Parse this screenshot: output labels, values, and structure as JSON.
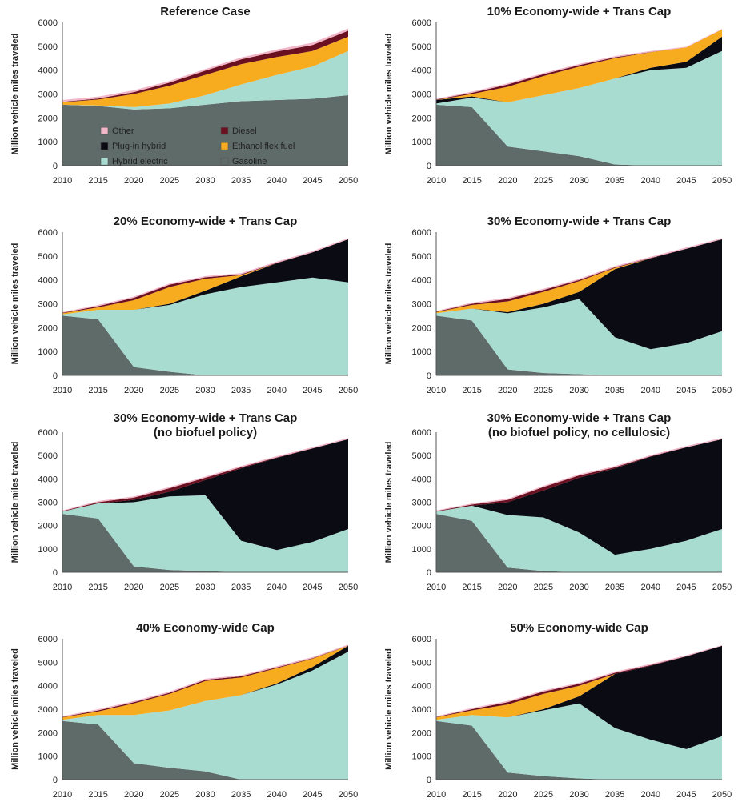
{
  "colors": {
    "Gasoline": "#5f6b69",
    "Hybrid electric": "#a8dcd1",
    "Plug-in hybrid": "#0b0b14",
    "Ethanol flex fuel": "#f7ab1e",
    "Diesel": "#6b1020",
    "Other": "#f2b6c9"
  },
  "chart_data": [
    {
      "type": "area",
      "title": "Reference Case",
      "title2": "",
      "ylabel": "Million vehicle miles traveled",
      "xlabel": "",
      "ylim": [
        0,
        6000
      ],
      "yticks": [
        "0",
        "1000",
        "2000",
        "3000",
        "4000",
        "5000",
        "6000"
      ],
      "x": [
        "2010",
        "2015",
        "2020",
        "2025",
        "2030",
        "2035",
        "2040",
        "2045",
        "2050"
      ],
      "legend": {
        "placement": "inside-bottom",
        "entries": [
          "Other",
          "Diesel",
          "Plug-in hybrid",
          "Ethanol flex fuel",
          "Hybrid electric",
          "Gasoline"
        ]
      },
      "series": [
        {
          "name": "Gasoline",
          "values": [
            2550,
            2500,
            2350,
            2400,
            2550,
            2700,
            2750,
            2800,
            2950
          ]
        },
        {
          "name": "Hybrid electric",
          "values": [
            0,
            20,
            100,
            200,
            400,
            700,
            1050,
            1350,
            1850
          ]
        },
        {
          "name": "Plug-in hybrid",
          "values": [
            0,
            0,
            0,
            0,
            0,
            0,
            0,
            0,
            0
          ]
        },
        {
          "name": "Ethanol flex fuel",
          "values": [
            100,
            250,
            550,
            750,
            850,
            850,
            750,
            650,
            600
          ]
        },
        {
          "name": "Diesel",
          "values": [
            20,
            40,
            80,
            130,
            180,
            200,
            230,
            250,
            250
          ]
        },
        {
          "name": "Other",
          "values": [
            80,
            80,
            80,
            70,
            70,
            80,
            90,
            100,
            100
          ]
        }
      ]
    },
    {
      "type": "area",
      "title": "10% Economy-wide + Trans Cap",
      "title2": "",
      "ylabel": "Million vehicle miles traveled",
      "xlabel": "",
      "ylim": [
        0,
        6000
      ],
      "yticks": [
        "0",
        "1000",
        "2000",
        "3000",
        "4000",
        "5000",
        "6000"
      ],
      "x": [
        "2010",
        "2015",
        "2020",
        "2025",
        "2030",
        "2035",
        "2040",
        "2045",
        "2050"
      ],
      "legend": null,
      "series": [
        {
          "name": "Gasoline",
          "values": [
            2550,
            2450,
            800,
            600,
            400,
            50,
            0,
            0,
            0
          ]
        },
        {
          "name": "Hybrid electric",
          "values": [
            50,
            400,
            1850,
            2350,
            2850,
            3600,
            4000,
            4100,
            4800
          ]
        },
        {
          "name": "Plug-in hybrid",
          "values": [
            150,
            50,
            0,
            0,
            0,
            0,
            100,
            250,
            600
          ]
        },
        {
          "name": "Ethanol flex fuel",
          "values": [
            0,
            100,
            650,
            800,
            900,
            850,
            650,
            600,
            300
          ]
        },
        {
          "name": "Diesel",
          "values": [
            20,
            50,
            100,
            80,
            60,
            40,
            10,
            0,
            0
          ]
        },
        {
          "name": "Other",
          "values": [
            30,
            50,
            50,
            50,
            50,
            50,
            40,
            30,
            30
          ]
        }
      ]
    },
    {
      "type": "area",
      "title": "20% Economy-wide + Trans Cap",
      "title2": "",
      "ylabel": "Million vehicle miles traveled",
      "xlabel": "",
      "ylim": [
        0,
        6000
      ],
      "yticks": [
        "0",
        "1000",
        "2000",
        "3000",
        "4000",
        "5000",
        "6000"
      ],
      "x": [
        "2010",
        "2015",
        "2020",
        "2025",
        "2030",
        "2035",
        "2040",
        "2045",
        "2050"
      ],
      "legend": null,
      "series": [
        {
          "name": "Gasoline",
          "values": [
            2500,
            2350,
            350,
            150,
            0,
            0,
            0,
            0,
            0
          ]
        },
        {
          "name": "Hybrid electric",
          "values": [
            50,
            400,
            2400,
            2800,
            3400,
            3700,
            3900,
            4100,
            3900
          ]
        },
        {
          "name": "Plug-in hybrid",
          "values": [
            0,
            0,
            0,
            50,
            150,
            450,
            800,
            1050,
            1800
          ]
        },
        {
          "name": "Ethanol flex fuel",
          "values": [
            50,
            100,
            400,
            700,
            500,
            50,
            0,
            0,
            0
          ]
        },
        {
          "name": "Diesel",
          "values": [
            20,
            50,
            100,
            100,
            60,
            30,
            20,
            10,
            0
          ]
        },
        {
          "name": "Other",
          "values": [
            30,
            50,
            50,
            50,
            50,
            50,
            50,
            50,
            50
          ]
        }
      ]
    },
    {
      "type": "area",
      "title": "30% Economy-wide + Trans Cap",
      "title2": "",
      "ylabel": "Million vehicle miles traveled",
      "xlabel": "",
      "ylim": [
        0,
        6000
      ],
      "yticks": [
        "0",
        "1000",
        "2000",
        "3000",
        "4000",
        "5000",
        "6000"
      ],
      "x": [
        "2010",
        "2015",
        "2020",
        "2025",
        "2030",
        "2035",
        "2040",
        "2045",
        "2050"
      ],
      "legend": null,
      "series": [
        {
          "name": "Gasoline",
          "values": [
            2500,
            2300,
            250,
            100,
            50,
            0,
            0,
            0,
            0
          ]
        },
        {
          "name": "Hybrid electric",
          "values": [
            100,
            500,
            2350,
            2750,
            3150,
            1600,
            1100,
            1350,
            1850
          ]
        },
        {
          "name": "Plug-in hybrid",
          "values": [
            0,
            0,
            50,
            150,
            300,
            2850,
            3800,
            3950,
            3850
          ]
        },
        {
          "name": "Ethanol flex fuel",
          "values": [
            50,
            150,
            450,
            500,
            450,
            50,
            0,
            0,
            0
          ]
        },
        {
          "name": "Diesel",
          "values": [
            20,
            50,
            100,
            80,
            50,
            30,
            20,
            10,
            0
          ]
        },
        {
          "name": "Other",
          "values": [
            30,
            50,
            50,
            50,
            50,
            50,
            50,
            50,
            50
          ]
        }
      ]
    },
    {
      "type": "area",
      "title": "30% Economy-wide + Trans Cap",
      "title2": "(no biofuel policy)",
      "ylabel": "Million vehicle miles traveled",
      "xlabel": "",
      "ylim": [
        0,
        6000
      ],
      "yticks": [
        "0",
        "1000",
        "2000",
        "3000",
        "4000",
        "5000",
        "6000"
      ],
      "x": [
        "2010",
        "2015",
        "2020",
        "2025",
        "2030",
        "2035",
        "2040",
        "2045",
        "2050"
      ],
      "legend": null,
      "series": [
        {
          "name": "Gasoline",
          "values": [
            2500,
            2300,
            250,
            100,
            50,
            0,
            0,
            0,
            0
          ]
        },
        {
          "name": "Hybrid electric",
          "values": [
            100,
            650,
            2750,
            3150,
            3250,
            1350,
            950,
            1300,
            1850
          ]
        },
        {
          "name": "Plug-in hybrid",
          "values": [
            0,
            0,
            100,
            200,
            650,
            3100,
            3950,
            4000,
            3850
          ]
        },
        {
          "name": "Ethanol flex fuel",
          "values": [
            0,
            0,
            0,
            0,
            0,
            0,
            0,
            0,
            0
          ]
        },
        {
          "name": "Diesel",
          "values": [
            20,
            50,
            100,
            150,
            100,
            50,
            20,
            10,
            0
          ]
        },
        {
          "name": "Other",
          "values": [
            30,
            50,
            50,
            50,
            50,
            50,
            50,
            50,
            50
          ]
        }
      ]
    },
    {
      "type": "area",
      "title": "30% Economy-wide + Trans Cap",
      "title2": "(no biofuel policy, no cellulosic)",
      "ylabel": "Million vehicle miles traveled",
      "xlabel": "",
      "ylim": [
        0,
        6000
      ],
      "yticks": [
        "0",
        "1000",
        "2000",
        "3000",
        "4000",
        "5000",
        "6000"
      ],
      "x": [
        "2010",
        "2015",
        "2020",
        "2025",
        "2030",
        "2035",
        "2040",
        "2045",
        "2050"
      ],
      "legend": null,
      "series": [
        {
          "name": "Gasoline",
          "values": [
            2500,
            2200,
            200,
            50,
            0,
            0,
            0,
            0,
            0
          ]
        },
        {
          "name": "Hybrid electric",
          "values": [
            100,
            650,
            2250,
            2300,
            1700,
            750,
            1000,
            1350,
            1850
          ]
        },
        {
          "name": "Plug-in hybrid",
          "values": [
            0,
            0,
            550,
            1150,
            2350,
            3700,
            3950,
            4000,
            3850
          ]
        },
        {
          "name": "Ethanol flex fuel",
          "values": [
            0,
            0,
            0,
            0,
            0,
            0,
            0,
            0,
            0
          ]
        },
        {
          "name": "Diesel",
          "values": [
            20,
            50,
            100,
            150,
            100,
            50,
            20,
            10,
            0
          ]
        },
        {
          "name": "Other",
          "values": [
            30,
            50,
            50,
            50,
            50,
            50,
            50,
            50,
            50
          ]
        }
      ]
    },
    {
      "type": "area",
      "title": "40% Economy-wide Cap",
      "title2": "",
      "ylabel": "Million vehicle miles traveled",
      "xlabel": "",
      "ylim": [
        0,
        6000
      ],
      "yticks": [
        "0",
        "1000",
        "2000",
        "3000",
        "4000",
        "5000",
        "6000"
      ],
      "x": [
        "2010",
        "2015",
        "2020",
        "2025",
        "2030",
        "2035",
        "2040",
        "2045",
        "2050"
      ],
      "legend": null,
      "series": [
        {
          "name": "Gasoline",
          "values": [
            2500,
            2350,
            700,
            500,
            350,
            0,
            0,
            0,
            0
          ]
        },
        {
          "name": "Hybrid electric",
          "values": [
            50,
            400,
            2050,
            2450,
            3000,
            3600,
            4050,
            4650,
            5450
          ]
        },
        {
          "name": "Plug-in hybrid",
          "values": [
            0,
            0,
            0,
            0,
            0,
            0,
            50,
            150,
            250
          ]
        },
        {
          "name": "Ethanol flex fuel",
          "values": [
            100,
            150,
            500,
            700,
            850,
            750,
            650,
            350,
            0
          ]
        },
        {
          "name": "Diesel",
          "values": [
            20,
            50,
            50,
            50,
            50,
            50,
            30,
            20,
            10
          ]
        },
        {
          "name": "Other",
          "values": [
            30,
            50,
            50,
            50,
            50,
            50,
            50,
            50,
            40
          ]
        }
      ]
    },
    {
      "type": "area",
      "title": "50% Economy-wide Cap",
      "title2": "",
      "ylabel": "Million vehicle miles traveled",
      "xlabel": "",
      "ylim": [
        0,
        6000
      ],
      "yticks": [
        "0",
        "1000",
        "2000",
        "3000",
        "4000",
        "5000",
        "6000"
      ],
      "x": [
        "2010",
        "2015",
        "2020",
        "2025",
        "2030",
        "2035",
        "2040",
        "2045",
        "2050"
      ],
      "legend": null,
      "series": [
        {
          "name": "Gasoline",
          "values": [
            2500,
            2300,
            300,
            150,
            50,
            0,
            0,
            0,
            0
          ]
        },
        {
          "name": "Hybrid electric",
          "values": [
            50,
            450,
            2350,
            2800,
            3200,
            2200,
            1700,
            1300,
            1850
          ]
        },
        {
          "name": "Plug-in hybrid",
          "values": [
            0,
            0,
            0,
            50,
            300,
            2300,
            3150,
            3950,
            3850
          ]
        },
        {
          "name": "Ethanol flex fuel",
          "values": [
            100,
            200,
            550,
            650,
            450,
            0,
            0,
            0,
            0
          ]
        },
        {
          "name": "Diesel",
          "values": [
            20,
            50,
            100,
            100,
            80,
            50,
            30,
            10,
            0
          ]
        },
        {
          "name": "Other",
          "values": [
            30,
            50,
            50,
            50,
            50,
            50,
            50,
            40,
            30
          ]
        }
      ]
    }
  ]
}
